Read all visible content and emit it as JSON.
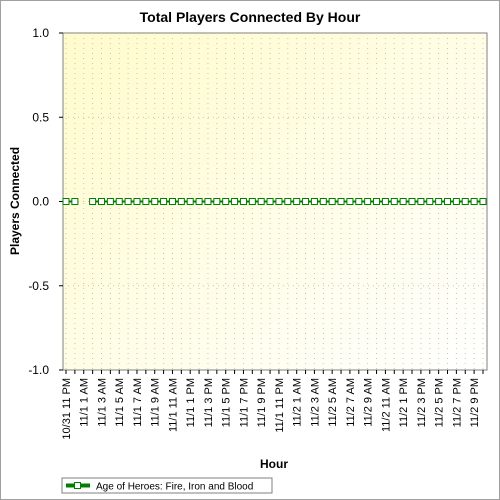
{
  "chart_data": {
    "type": "line",
    "title": "Total Players Connected By Hour",
    "xlabel": "Hour",
    "ylabel": "Players Connected",
    "ylim": [
      -1.0,
      1.0
    ],
    "yticks": [
      "1.0",
      "0.5",
      "0.0",
      "-0.5",
      "-1.0"
    ],
    "ytick_values": [
      1.0,
      0.5,
      0.0,
      -0.5,
      -1.0
    ],
    "grid": true,
    "legend_position": "bottom-left",
    "plot_background": "#ffffe0",
    "x_tick_labels": [
      "10/31 11 PM",
      "11/1 1 AM",
      "11/1 3 AM",
      "11/1 5 AM",
      "11/1 7 AM",
      "11/1 9 AM",
      "11/1 11 AM",
      "11/1 1 PM",
      "11/1 3 PM",
      "11/1 5 PM",
      "11/1 7 PM",
      "11/1 9 PM",
      "11/1 11 PM",
      "11/2 1 AM",
      "11/2 3 AM",
      "11/2 5 AM",
      "11/2 7 AM",
      "11/2 9 AM",
      "11/2 11 AM",
      "11/2 1 PM",
      "11/2 3 PM",
      "11/2 5 PM",
      "11/2 7 PM",
      "11/2 9 PM"
    ],
    "x": [
      "10/31 11 PM",
      "11/1 12 AM",
      "11/1 1 AM",
      "11/1 2 AM",
      "11/1 3 AM",
      "11/1 4 AM",
      "11/1 5 AM",
      "11/1 6 AM",
      "11/1 7 AM",
      "11/1 8 AM",
      "11/1 9 AM",
      "11/1 10 AM",
      "11/1 11 AM",
      "11/1 12 PM",
      "11/1 1 PM",
      "11/1 2 PM",
      "11/1 3 PM",
      "11/1 4 PM",
      "11/1 5 PM",
      "11/1 6 PM",
      "11/1 7 PM",
      "11/1 8 PM",
      "11/1 9 PM",
      "11/1 10 PM",
      "11/1 11 PM",
      "11/2 12 AM",
      "11/2 1 AM",
      "11/2 2 AM",
      "11/2 3 AM",
      "11/2 4 AM",
      "11/2 5 AM",
      "11/2 6 AM",
      "11/2 7 AM",
      "11/2 8 AM",
      "11/2 9 AM",
      "11/2 10 AM",
      "11/2 11 AM",
      "11/2 12 PM",
      "11/2 1 PM",
      "11/2 2 PM",
      "11/2 3 PM",
      "11/2 4 PM",
      "11/2 5 PM",
      "11/2 6 PM",
      "11/2 7 PM",
      "11/2 8 PM",
      "11/2 9 PM",
      "11/2 10 PM"
    ],
    "series": [
      {
        "name": "Age of Heroes: Fire, Iron and Blood",
        "color": "#008000",
        "marker_fill": "#ffffff",
        "values": [
          0,
          0,
          null,
          0,
          0,
          0,
          0,
          0,
          0,
          0,
          0,
          0,
          0,
          0,
          0,
          0,
          0,
          0,
          0,
          0,
          0,
          0,
          0,
          0,
          0,
          0,
          0,
          0,
          0,
          0,
          0,
          0,
          0,
          0,
          0,
          0,
          0,
          0,
          0,
          0,
          0,
          0,
          0,
          0,
          0,
          0,
          0,
          0
        ]
      }
    ]
  }
}
